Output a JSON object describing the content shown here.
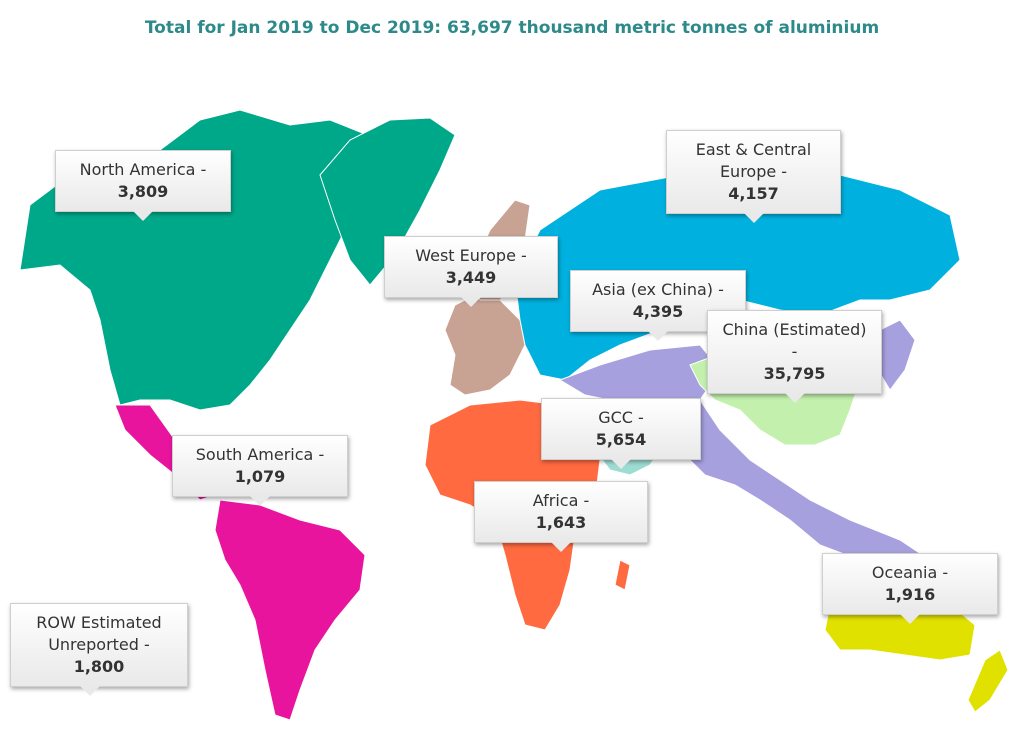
{
  "title": "Total for Jan 2019 to Dec 2019: 63,697 thousand metric tonnes of aluminium",
  "regions": [
    {
      "id": "north-america",
      "label": "North America -",
      "value": "3,809",
      "color": "#00a88a"
    },
    {
      "id": "south-america",
      "label": "South America -",
      "value": "1,079",
      "color": "#e8149e"
    },
    {
      "id": "west-europe",
      "label": "West Europe -",
      "value": "3,449",
      "color": "#c8a292"
    },
    {
      "id": "east-central-europe",
      "label": "East & Central Europe -",
      "value": "4,157",
      "color": "#00b1df"
    },
    {
      "id": "asia-ex-china",
      "label": "Asia (ex China) -",
      "value": "4,395",
      "color": "#a6a0df"
    },
    {
      "id": "china",
      "label": "China (Estimated) -",
      "value": "35,795",
      "color": "#c3f0ad"
    },
    {
      "id": "gcc",
      "label": "GCC -",
      "value": "5,654",
      "color": "#9ddcd2"
    },
    {
      "id": "africa",
      "label": "Africa -",
      "value": "1,643",
      "color": "#ff6a40"
    },
    {
      "id": "oceania",
      "label": "Oceania -",
      "value": "1,916",
      "color": "#e1e100"
    },
    {
      "id": "row",
      "label": "ROW Estimated Unreported -",
      "value": "1,800",
      "color": "#ffffff"
    }
  ]
}
